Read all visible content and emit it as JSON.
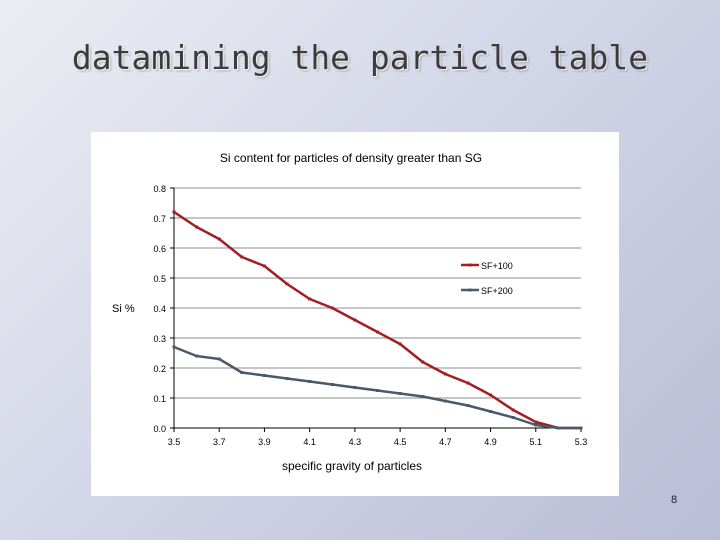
{
  "slide": {
    "title": "datamining the particle table",
    "page_number": "8"
  },
  "colors": {
    "series_1": "#a21e23",
    "series_2": "#4a5a6a",
    "gridline": "#8c8c8c"
  },
  "chart_data": {
    "type": "line",
    "title": "Si content for particles of density greater than SG",
    "xlabel": "specific gravity of particles",
    "ylabel": "Si %",
    "xlim": [
      3.5,
      5.3
    ],
    "ylim": [
      0,
      0.8
    ],
    "x_ticks": [
      "3.5",
      "3.7",
      "3.9",
      "4.1",
      "4.3",
      "4.5",
      "4.7",
      "4.9",
      "5.1",
      "5.3"
    ],
    "y_ticks": [
      "0.0",
      "0.1",
      "0.2",
      "0.3",
      "0.4",
      "0.5",
      "0.6",
      "0.7",
      "0.8"
    ],
    "grid": "horizontal",
    "legend_position": "right",
    "x": [
      3.5,
      3.6,
      3.7,
      3.8,
      3.9,
      4.0,
      4.1,
      4.2,
      4.3,
      4.4,
      4.5,
      4.6,
      4.7,
      4.8,
      4.9,
      5.0,
      5.1,
      5.2,
      5.3
    ],
    "series": [
      {
        "name": "SF+100",
        "values": [
          0.72,
          0.67,
          0.63,
          0.57,
          0.54,
          0.48,
          0.43,
          0.4,
          0.36,
          0.32,
          0.28,
          0.22,
          0.18,
          0.15,
          0.11,
          0.06,
          0.02,
          0.0,
          0.0
        ]
      },
      {
        "name": "SF+200",
        "values": [
          0.27,
          0.24,
          0.23,
          0.185,
          0.175,
          0.165,
          0.155,
          0.145,
          0.135,
          0.125,
          0.115,
          0.105,
          0.09,
          0.075,
          0.055,
          0.035,
          0.01,
          0.0,
          0.0
        ]
      }
    ]
  }
}
